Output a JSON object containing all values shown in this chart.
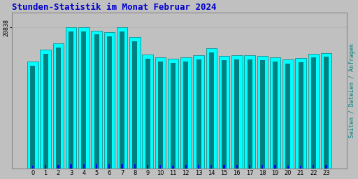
{
  "title": "Stunden-Statistik im Monat Februar 2024",
  "title_color": "#0000cc",
  "categories": [
    0,
    1,
    2,
    3,
    4,
    5,
    6,
    7,
    8,
    9,
    10,
    11,
    12,
    13,
    14,
    15,
    16,
    17,
    18,
    19,
    20,
    21,
    22,
    23
  ],
  "seiten_values": [
    15800,
    17600,
    18500,
    20838,
    20838,
    20400,
    20100,
    20838,
    19400,
    16800,
    16400,
    16200,
    16400,
    16700,
    17800,
    16600,
    16700,
    16700,
    16600,
    16450,
    16100,
    16300,
    17000,
    17100
  ],
  "dateien_values": [
    15200,
    17000,
    17900,
    20200,
    20300,
    19800,
    19500,
    20200,
    18800,
    16200,
    15800,
    15600,
    15800,
    16100,
    17200,
    16000,
    16100,
    16100,
    16000,
    15850,
    15500,
    15700,
    16400,
    16500
  ],
  "anfragen_values": [
    500,
    550,
    600,
    700,
    710,
    680,
    660,
    700,
    640,
    520,
    510,
    500,
    510,
    520,
    580,
    515,
    520,
    520,
    515,
    510,
    500,
    505,
    530,
    530
  ],
  "bar_color_cyan": "#00ffff",
  "bar_color_teal": "#008080",
  "bar_color_blue": "#0000ff",
  "bg_color": "#c0c0c0",
  "plot_bg_color": "#c0c0c0",
  "ylabel_right": "Seiten / Dateien / Anfragen",
  "ylabel_right_color": "#008080",
  "ytick_label": "20838",
  "ylim": [
    0,
    23000
  ],
  "title_fontsize": 9,
  "bar_width": 0.85
}
